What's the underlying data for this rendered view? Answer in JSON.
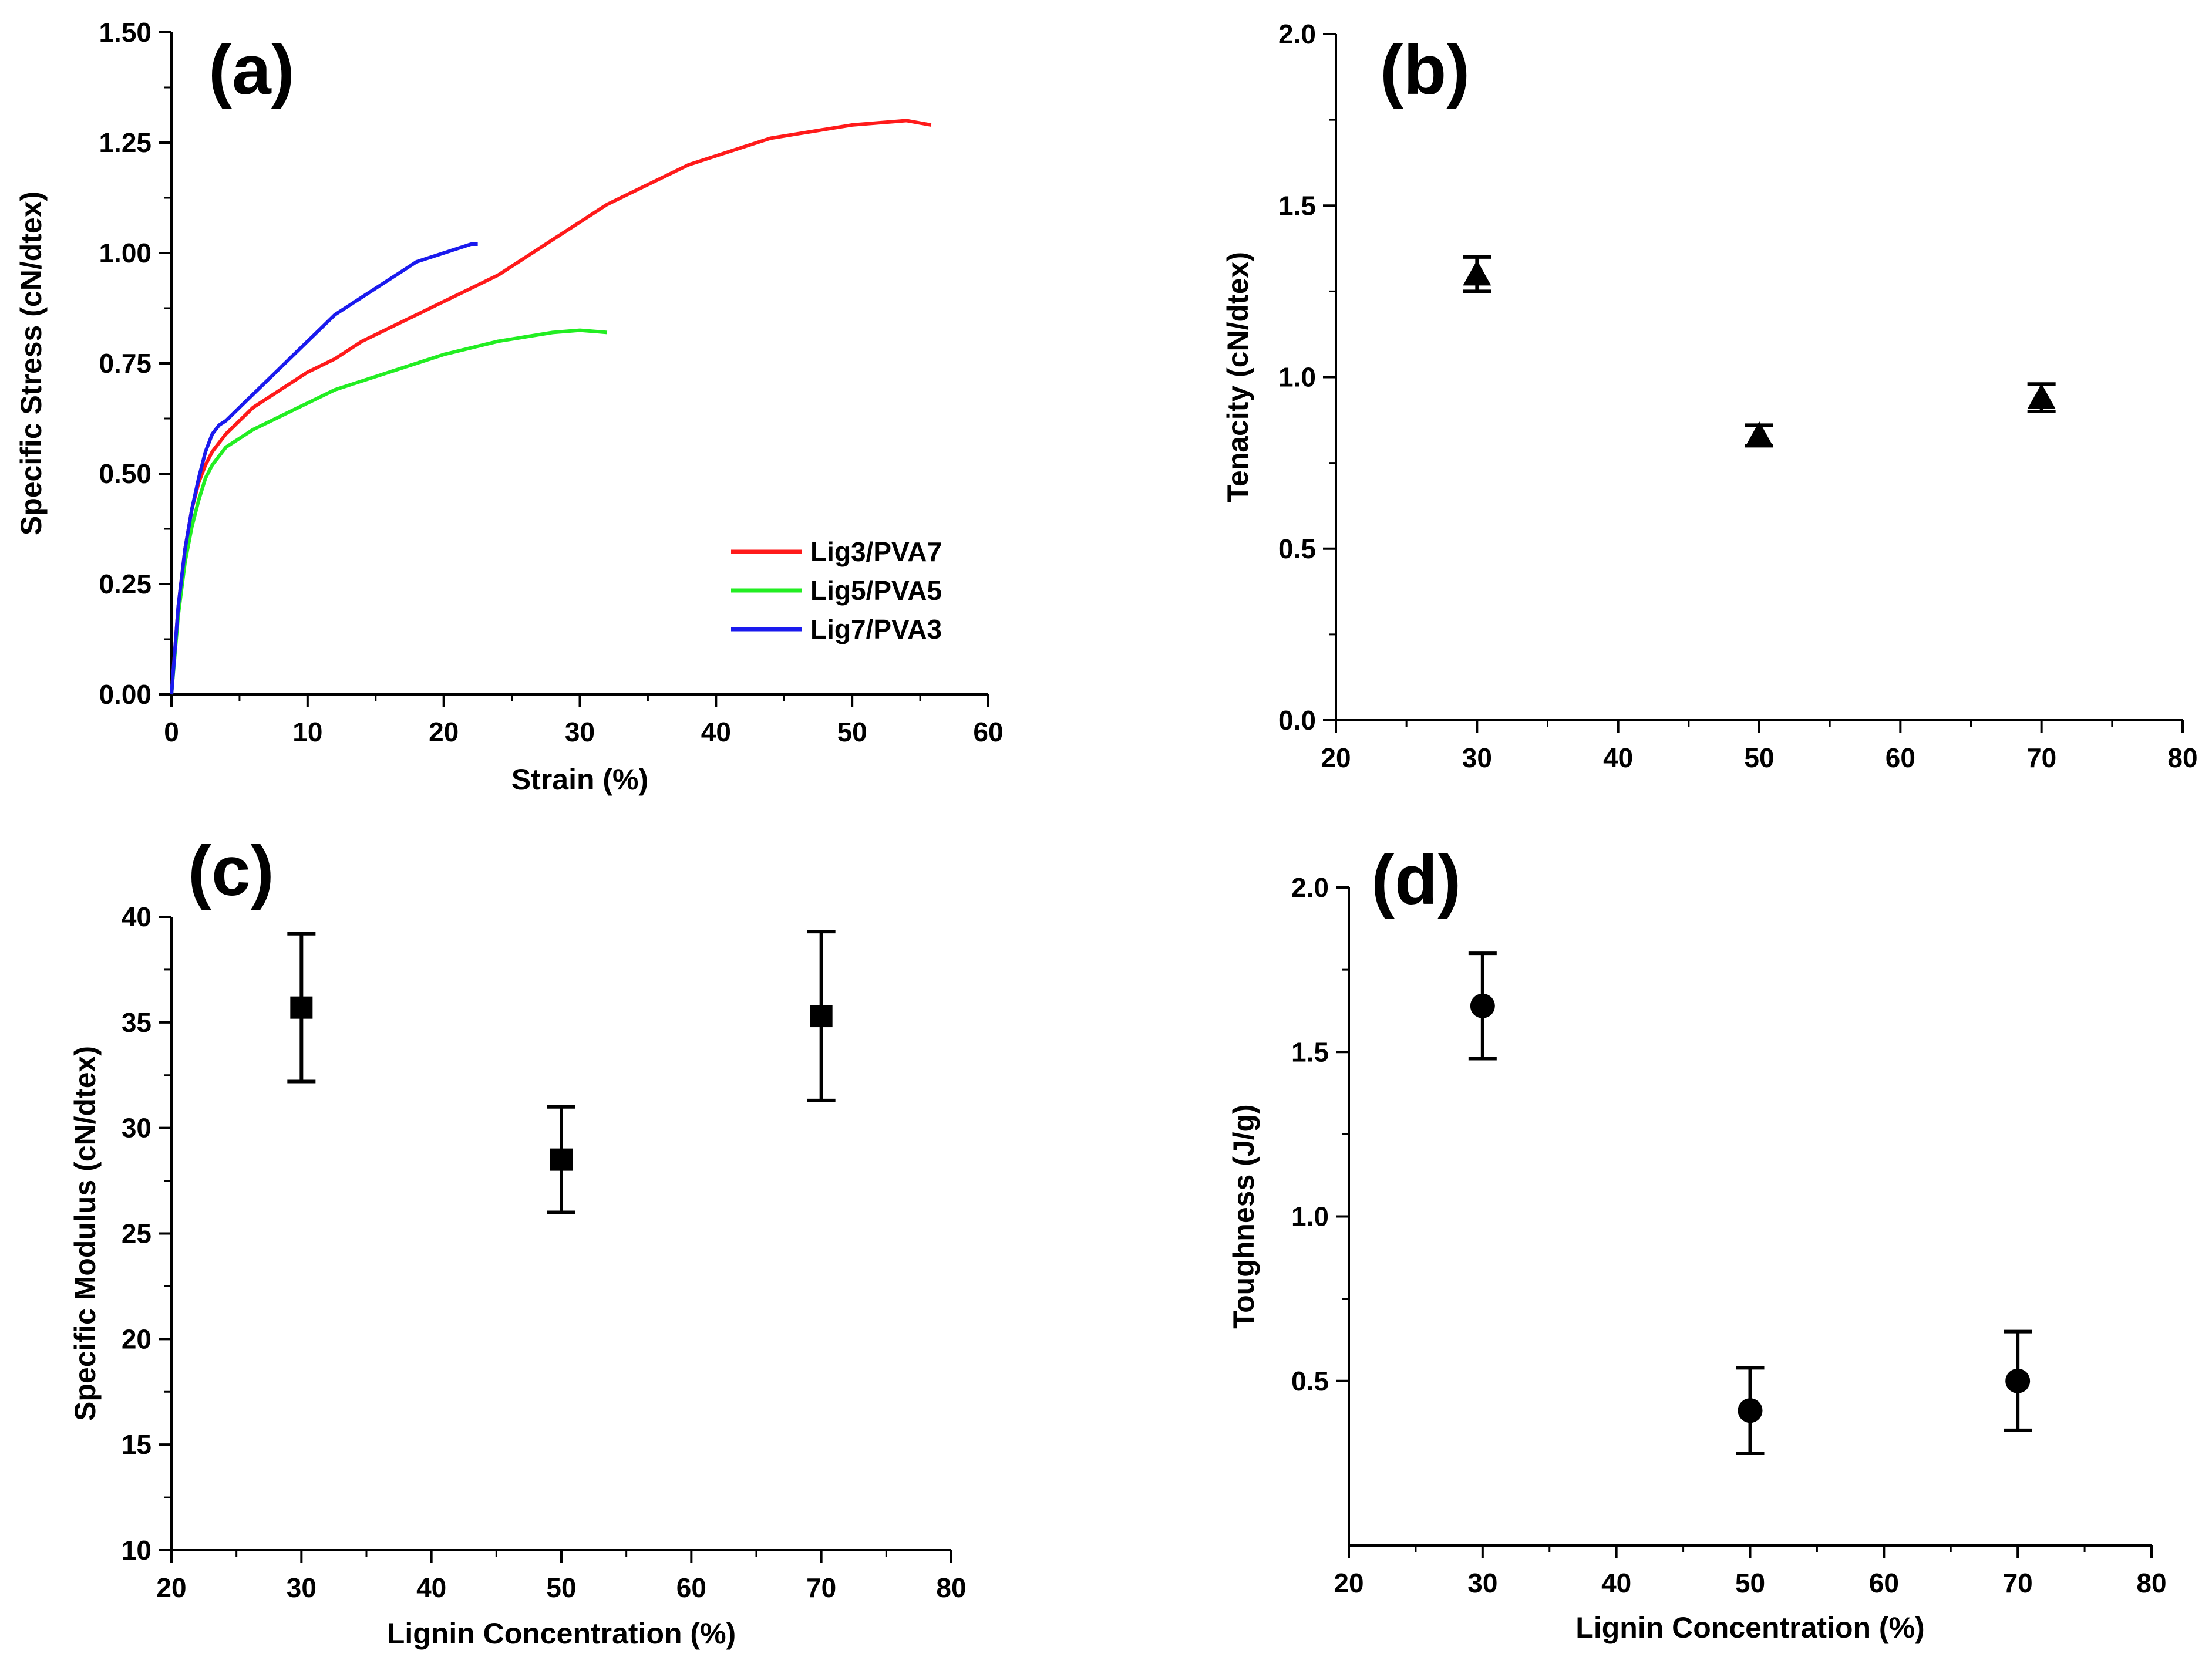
{
  "chart_data": [
    {
      "panel": "(a)",
      "type": "line",
      "xlabel": "Strain (%)",
      "ylabel": "Specific Stress (cN/dtex)",
      "xlim": [
        0,
        60
      ],
      "ylim": [
        0,
        1.5
      ],
      "xticks": [
        0,
        10,
        20,
        30,
        40,
        50,
        60
      ],
      "yticks": [
        0,
        0.25,
        0.5,
        0.75,
        1.0,
        1.25,
        1.5
      ],
      "xtick_labels": [
        "0",
        "10",
        "20",
        "30",
        "40",
        "50",
        "60"
      ],
      "ytick_labels": [
        "0.00",
        "0.25",
        "0.50",
        "0.75",
        "1.00",
        "1.25",
        "1.50"
      ],
      "legend_position": "bottom-right",
      "series": [
        {
          "name": "Lig3/PVA7",
          "color": "#ff1a1a",
          "x": [
            0,
            0.5,
            1,
            1.5,
            2,
            2.5,
            3,
            4,
            5,
            6,
            8,
            10,
            12,
            14,
            16,
            18,
            20,
            22,
            24,
            26,
            28,
            30,
            32,
            34,
            36,
            38,
            40,
            42,
            44,
            46,
            48,
            50,
            52,
            54,
            55.8
          ],
          "y": [
            0,
            0.2,
            0.33,
            0.42,
            0.48,
            0.52,
            0.55,
            0.59,
            0.62,
            0.65,
            0.69,
            0.73,
            0.76,
            0.8,
            0.83,
            0.86,
            0.89,
            0.92,
            0.95,
            0.99,
            1.03,
            1.07,
            1.11,
            1.14,
            1.17,
            1.2,
            1.22,
            1.24,
            1.26,
            1.27,
            1.28,
            1.29,
            1.295,
            1.3,
            1.29
          ]
        },
        {
          "name": "Lig5/PVA5",
          "color": "#22ee22",
          "x": [
            0,
            0.5,
            1,
            1.5,
            2,
            2.5,
            3,
            4,
            5,
            6,
            8,
            10,
            12,
            14,
            16,
            18,
            20,
            22,
            24,
            26,
            28,
            30,
            32
          ],
          "y": [
            0,
            0.18,
            0.3,
            0.38,
            0.44,
            0.49,
            0.52,
            0.56,
            0.58,
            0.6,
            0.63,
            0.66,
            0.69,
            0.71,
            0.73,
            0.75,
            0.77,
            0.785,
            0.8,
            0.81,
            0.82,
            0.825,
            0.82
          ]
        },
        {
          "name": "Lig7/PVA3",
          "color": "#1a1aee",
          "x": [
            0,
            0.5,
            1,
            1.5,
            2,
            2.5,
            3,
            3.5,
            4,
            5,
            6,
            7,
            8,
            9,
            10,
            11,
            12,
            13,
            14,
            15,
            16,
            17,
            18,
            19,
            20,
            21,
            22,
            22.5
          ],
          "y": [
            0,
            0.2,
            0.33,
            0.42,
            0.49,
            0.55,
            0.59,
            0.61,
            0.62,
            0.65,
            0.68,
            0.71,
            0.74,
            0.77,
            0.8,
            0.83,
            0.86,
            0.88,
            0.9,
            0.92,
            0.94,
            0.96,
            0.98,
            0.99,
            1.0,
            1.01,
            1.02,
            1.02
          ]
        }
      ]
    },
    {
      "panel": "(b)",
      "type": "scatter",
      "marker": "triangle",
      "xlabel": "",
      "ylabel": "Tenacity (cN/dtex)",
      "xlim": [
        20,
        80
      ],
      "ylim": [
        0,
        2.0
      ],
      "xticks": [
        20,
        30,
        40,
        50,
        60,
        70,
        80
      ],
      "yticks": [
        0,
        0.5,
        1.0,
        1.5,
        2.0
      ],
      "xtick_labels": [
        "20",
        "30",
        "40",
        "50",
        "60",
        "70",
        "80"
      ],
      "ytick_labels": [
        "0.0",
        "0.5",
        "1.0",
        "1.5",
        "2.0"
      ],
      "x": [
        30,
        50,
        70
      ],
      "y": [
        1.3,
        0.83,
        0.94
      ],
      "err": [
        0.05,
        0.03,
        0.04
      ]
    },
    {
      "panel": "(c)",
      "type": "scatter",
      "marker": "square",
      "xlabel": "Lignin Concentration (%)",
      "ylabel": "Specific Modulus (cN/dtex)",
      "xlim": [
        20,
        80
      ],
      "ylim": [
        10,
        40
      ],
      "xticks": [
        20,
        30,
        40,
        50,
        60,
        70,
        80
      ],
      "yticks": [
        10,
        15,
        20,
        25,
        30,
        35,
        40
      ],
      "xtick_labels": [
        "20",
        "30",
        "40",
        "50",
        "60",
        "70",
        "80"
      ],
      "ytick_labels": [
        "10",
        "15",
        "20",
        "25",
        "30",
        "35",
        "40"
      ],
      "x": [
        30,
        50,
        70
      ],
      "y": [
        35.7,
        28.5,
        35.3
      ],
      "err": [
        3.5,
        2.5,
        4.0
      ]
    },
    {
      "panel": "(d)",
      "type": "scatter",
      "marker": "circle",
      "xlabel": "Lignin Concentration (%)",
      "ylabel": "Toughness (J/g)",
      "xlim": [
        20,
        80
      ],
      "ylim": [
        0,
        2.0
      ],
      "xticks": [
        20,
        30,
        40,
        50,
        60,
        70,
        80
      ],
      "yticks": [
        0.5,
        1.0,
        1.5,
        2.0
      ],
      "xtick_labels": [
        "20",
        "30",
        "40",
        "50",
        "60",
        "70",
        "80"
      ],
      "ytick_labels": [
        "0.5",
        "1.0",
        "1.5",
        "2.0"
      ],
      "x": [
        30,
        50,
        70
      ],
      "y": [
        1.64,
        0.41,
        0.5
      ],
      "err": [
        0.16,
        0.13,
        0.15
      ]
    }
  ]
}
